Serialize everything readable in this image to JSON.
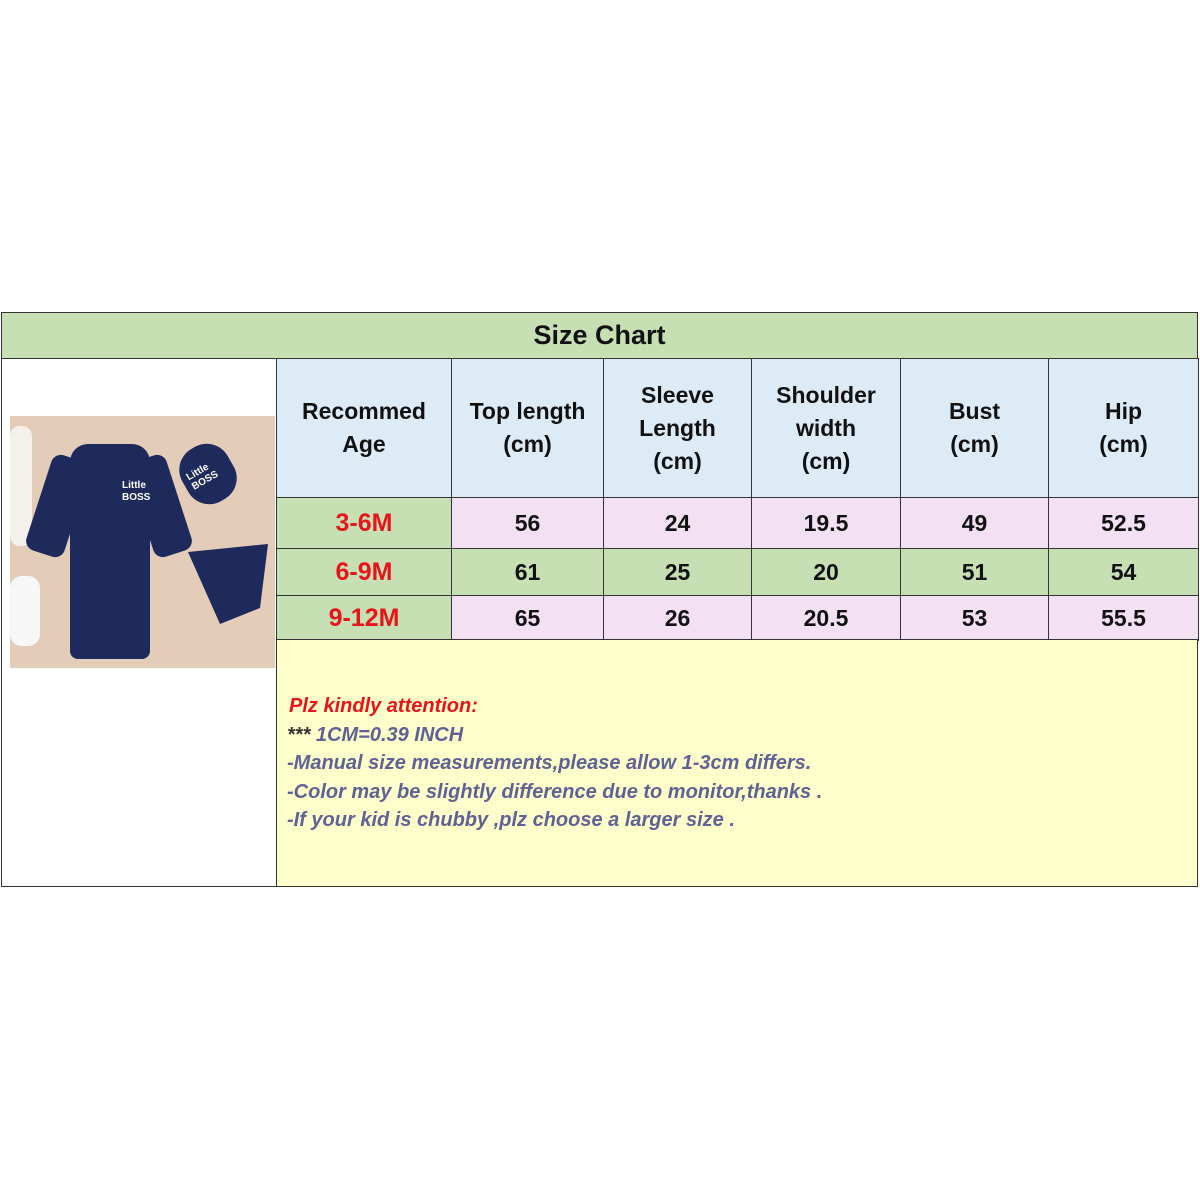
{
  "title": "Size Chart",
  "headers": [
    "Recommed\nAge",
    "Top length\n(cm)",
    "Sleeve\nLength\n(cm)",
    "Shoulder\nwidth\n(cm)",
    "Bust\n(cm)",
    "Hip\n(cm)"
  ],
  "rows": [
    {
      "age": "3-6M",
      "values": [
        "56",
        "24",
        "19.5",
        "49",
        "52.5"
      ]
    },
    {
      "age": "6-9M",
      "values": [
        "61",
        "25",
        "20",
        "51",
        "54"
      ]
    },
    {
      "age": "9-12M",
      "values": [
        "65",
        "26",
        "20.5",
        "53",
        "55.5"
      ]
    }
  ],
  "notes": {
    "heading": "Plz kindly attention:",
    "stars": "***",
    "conversion": "1CM=0.39 INCH",
    "lines": [
      "-Manual size measurements,please allow 1-3cm differs.",
      "-Color may be slightly difference due to monitor,thanks .",
      "-If your kid is chubby ,plz choose a larger size ."
    ]
  },
  "photo": {
    "romper_text": "Little BOSS",
    "hat_text": "Little BOSS"
  },
  "colors": {
    "green": "#c6e0b4",
    "blue": "#ddebf7",
    "pink": "#f3e0f2",
    "yellow": "#ffffcc",
    "age_red": "#e8141b",
    "note_text": "#5f6294",
    "navy": "#1f2a5c"
  }
}
